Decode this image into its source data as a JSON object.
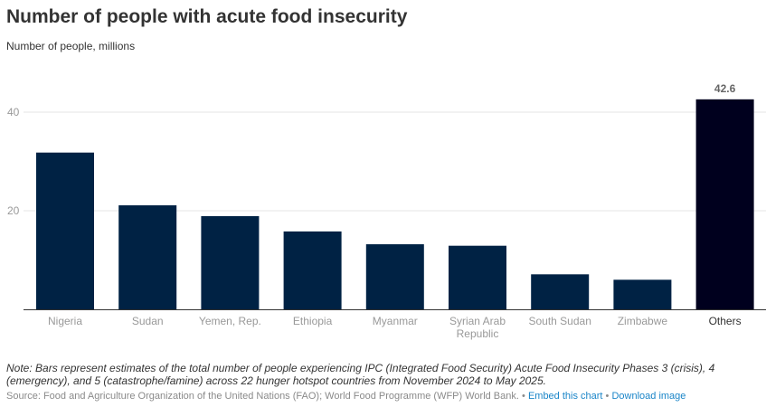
{
  "header": {
    "title": "Number of people with acute food insecurity",
    "subtitle": "Number of people, millions"
  },
  "chart_data": {
    "type": "bar",
    "categories": [
      "Nigeria",
      "Sudan",
      "Yemen, Rep.",
      "Ethiopia",
      "Myanmar",
      "Syrian Arab Republic",
      "South Sudan",
      "Zimbabwe",
      "Others"
    ],
    "category_lines": [
      [
        "Nigeria"
      ],
      [
        "Sudan"
      ],
      [
        "Yemen, Rep."
      ],
      [
        "Ethiopia"
      ],
      [
        "Myanmar"
      ],
      [
        "Syrian Arab",
        "Republic"
      ],
      [
        "South Sudan"
      ],
      [
        "Zimbabwe"
      ],
      [
        "Others"
      ]
    ],
    "values": [
      31.8,
      21.1,
      18.9,
      15.8,
      13.2,
      12.9,
      7.1,
      6.0,
      42.6
    ],
    "highlight_index": 8,
    "data_labels": [
      null,
      null,
      null,
      null,
      null,
      null,
      null,
      null,
      "42.6"
    ],
    "yticks": [
      20,
      40
    ],
    "ylim": [
      0,
      48
    ],
    "grid": true,
    "colors": {
      "bar": "#002244",
      "highlight": "#00001e",
      "grid": "#e6e6e6",
      "axis": "#333333"
    }
  },
  "footer": {
    "note": "Note: Bars represent estimates of the total number of people experiencing IPC (Integrated Food Security) Acute Food Insecurity Phases 3 (crisis), 4 (emergency), and 5 (catastrophe/famine) across 22 hunger hotspot countries from November 2024 to May 2025.",
    "source": "Source: Food and Agriculture Organization of the United Nations (FAO); World Food Programme (WFP) World Bank.",
    "separator": "•",
    "embed_label": "Embed this chart",
    "download_label": "Download image"
  }
}
